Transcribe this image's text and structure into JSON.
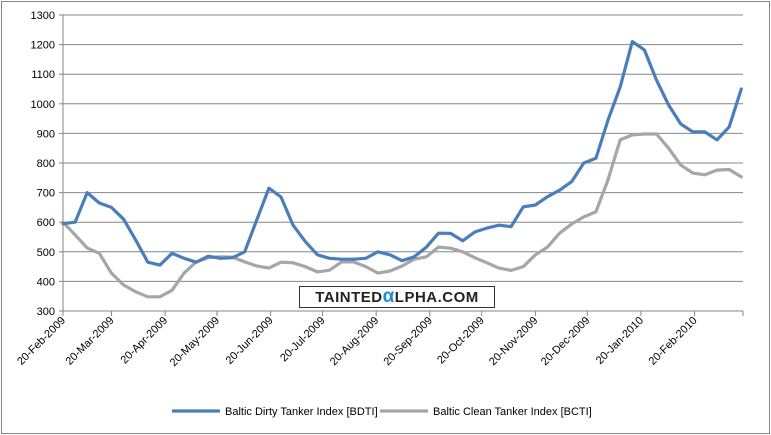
{
  "chart_data": {
    "type": "line",
    "title": "",
    "xlabel": "",
    "ylabel": "",
    "ylim": [
      300,
      1300
    ],
    "yticks": [
      "300",
      "400",
      "500",
      "600",
      "700",
      "800",
      "900",
      "1000",
      "1100",
      "1200",
      "1300"
    ],
    "xlim": [
      "2009-02-20",
      "2010-03-20"
    ],
    "xticks": [
      "20-Feb-2009",
      "20-Mar-2009",
      "20-Apr-2009",
      "20-May-2009",
      "20-Jun-2009",
      "20-Jul-2009",
      "20-Aug-2009",
      "20-Sep-2009",
      "20-Oct-2009",
      "20-Nov-2009",
      "20-Dec-2009",
      "20-Jan-2010",
      "20-Feb-2010"
    ],
    "grid": "horizontal",
    "legend_position": "bottom",
    "x": [
      "2009-02-20",
      "2009-02-27",
      "2009-03-06",
      "2009-03-13",
      "2009-03-20",
      "2009-03-27",
      "2009-04-03",
      "2009-04-10",
      "2009-04-17",
      "2009-04-24",
      "2009-05-01",
      "2009-05-08",
      "2009-05-15",
      "2009-05-22",
      "2009-05-29",
      "2009-06-05",
      "2009-06-12",
      "2009-06-19",
      "2009-06-26",
      "2009-07-03",
      "2009-07-10",
      "2009-07-17",
      "2009-07-24",
      "2009-07-31",
      "2009-08-07",
      "2009-08-14",
      "2009-08-21",
      "2009-08-28",
      "2009-09-04",
      "2009-09-11",
      "2009-09-18",
      "2009-09-25",
      "2009-10-02",
      "2009-10-09",
      "2009-10-16",
      "2009-10-23",
      "2009-10-30",
      "2009-11-06",
      "2009-11-13",
      "2009-11-20",
      "2009-11-27",
      "2009-12-04",
      "2009-12-11",
      "2009-12-18",
      "2009-12-25",
      "2010-01-01",
      "2010-01-08",
      "2010-01-15",
      "2010-01-22",
      "2010-01-29",
      "2010-02-05",
      "2010-02-12",
      "2010-02-19",
      "2010-02-26",
      "2010-03-05",
      "2010-03-12",
      "2010-03-19"
    ],
    "series": [
      {
        "name": "Baltic Dirty Tanker Index [BDTI]",
        "color": "#4a7ebb",
        "values": [
          595,
          600,
          700,
          665,
          650,
          610,
          540,
          465,
          455,
          495,
          478,
          465,
          485,
          478,
          480,
          500,
          608,
          715,
          685,
          590,
          535,
          490,
          478,
          475,
          475,
          478,
          500,
          490,
          470,
          483,
          516,
          563,
          562,
          537,
          567,
          580,
          590,
          585,
          652,
          658,
          686,
          708,
          737,
          800,
          816,
          945,
          1057,
          1210,
          1182,
          1080,
          996,
          932,
          905,
          905,
          878,
          922,
          1050
        ]
      },
      {
        "name": "Baltic Clean Tanker Index [BCTI]",
        "color": "#a6a6a6",
        "values": [
          600,
          557,
          513,
          495,
          428,
          388,
          365,
          348,
          348,
          370,
          428,
          466,
          480,
          483,
          482,
          466,
          452,
          445,
          465,
          463,
          450,
          432,
          438,
          466,
          466,
          450,
          428,
          435,
          452,
          475,
          483,
          516,
          512,
          500,
          480,
          463,
          445,
          437,
          450,
          490,
          516,
          563,
          594,
          618,
          635,
          743,
          878,
          895,
          898,
          898,
          850,
          793,
          766,
          760,
          776,
          778,
          753
        ]
      }
    ]
  },
  "watermark": {
    "text_before": "TAINTED",
    "alpha": "α",
    "text_after": "LPHA.COM"
  }
}
